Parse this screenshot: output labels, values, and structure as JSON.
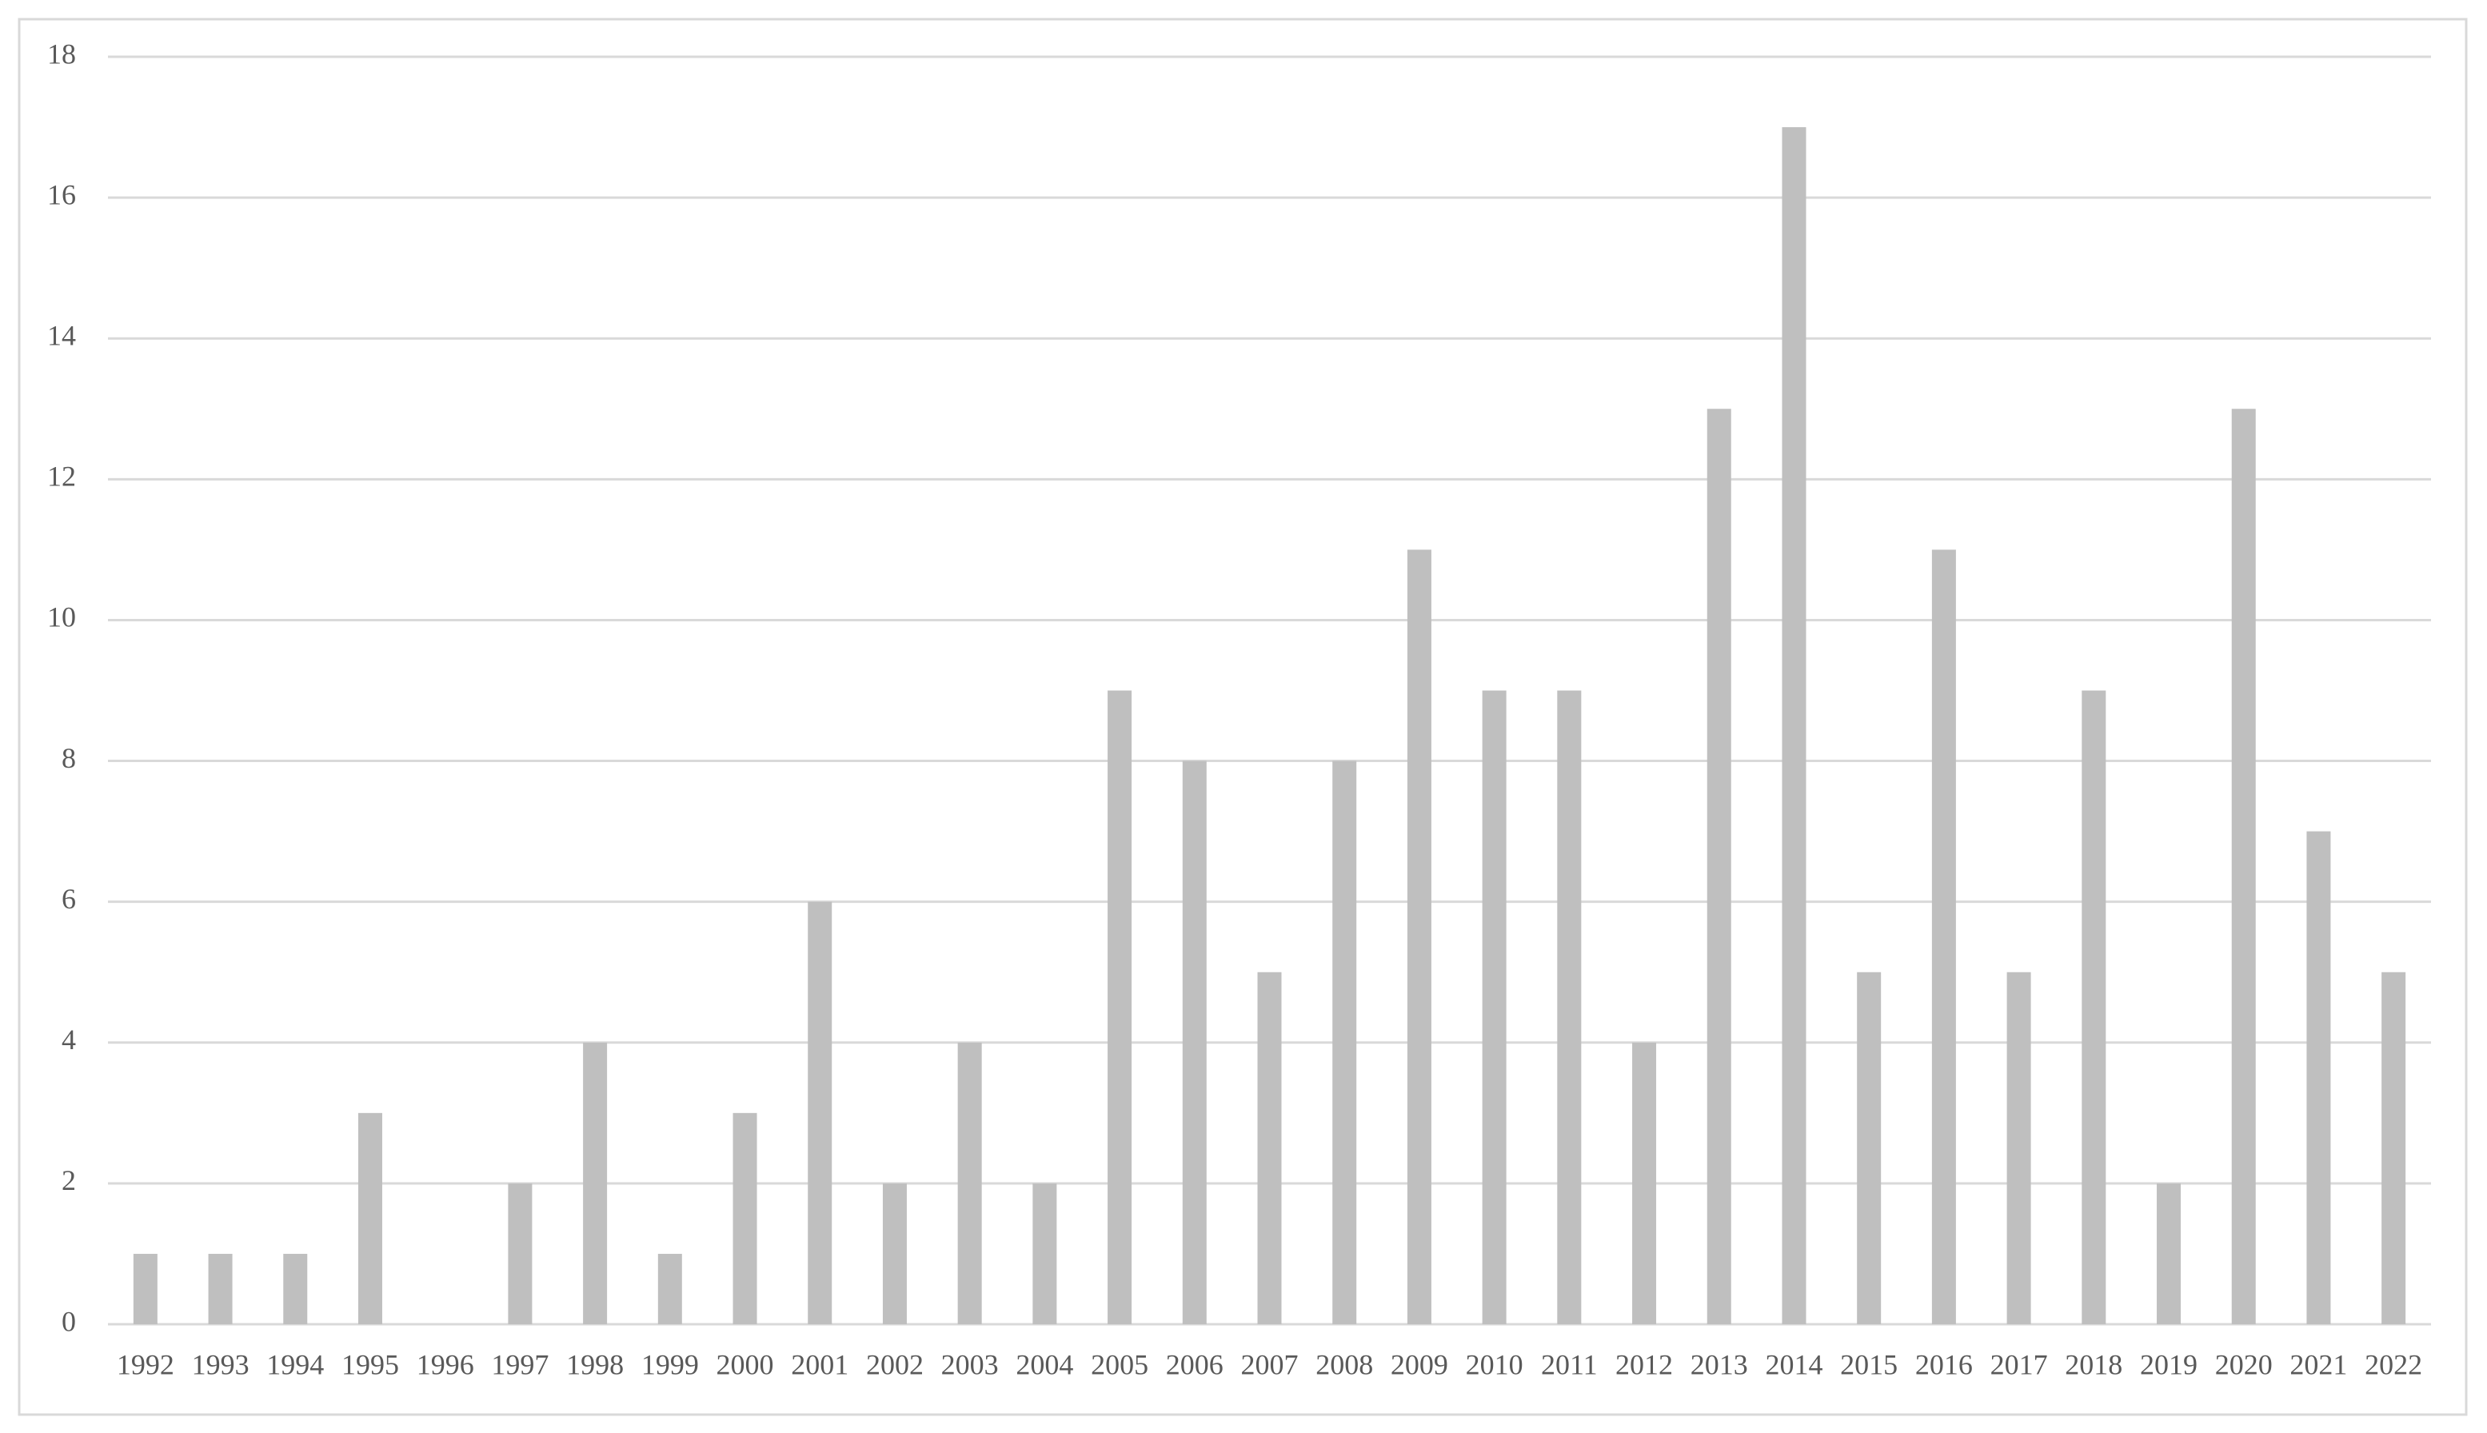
{
  "chart_data": {
    "type": "bar",
    "categories": [
      "1992",
      "1993",
      "1994",
      "1995",
      "1996",
      "1997",
      "1998",
      "1999",
      "2000",
      "2001",
      "2002",
      "2003",
      "2004",
      "2005",
      "2006",
      "2007",
      "2008",
      "2009",
      "2010",
      "2011",
      "2012",
      "2013",
      "2014",
      "2015",
      "2016",
      "2017",
      "2018",
      "2019",
      "2020",
      "2021",
      "2022"
    ],
    "values": [
      1,
      1,
      1,
      3,
      0,
      2,
      4,
      1,
      3,
      6,
      2,
      4,
      2,
      9,
      8,
      5,
      8,
      11,
      9,
      9,
      4,
      13,
      17,
      5,
      11,
      5,
      9,
      2,
      13,
      7,
      5
    ],
    "color": "#bfbfbf",
    "ylim": [
      0,
      18
    ],
    "yticks": [
      0,
      2,
      4,
      6,
      8,
      10,
      12,
      14,
      16,
      18
    ],
    "grid": true
  }
}
